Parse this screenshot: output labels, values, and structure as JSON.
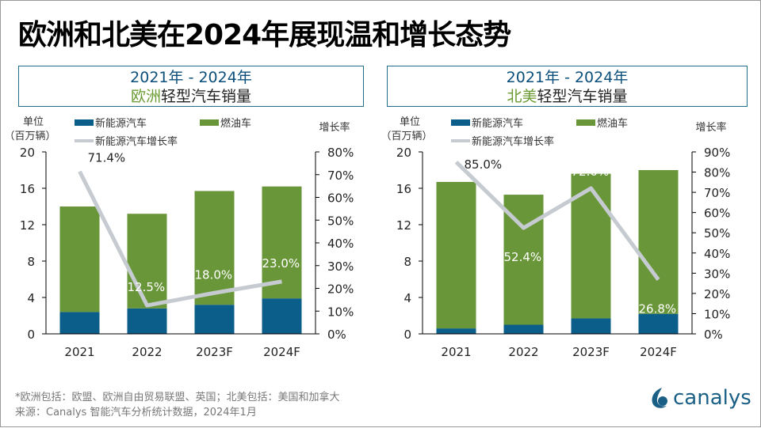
{
  "title": "欧洲和北美在2024年展现温和增长态势",
  "chart_data": [
    {
      "type": "bar+line",
      "header_line1": "2021年 - 2024年",
      "header_highlight": "欧洲",
      "header_rest": "轻型汽车销量",
      "ylabel": "单位",
      "ylabel2": "（百万辆）",
      "y2label": "增长率",
      "categories": [
        "2021",
        "2022",
        "2023F",
        "2024F"
      ],
      "ylim": [
        0,
        20
      ],
      "yticks": [
        "0",
        "4",
        "8",
        "12",
        "16",
        "20"
      ],
      "y2lim": [
        0,
        80
      ],
      "y2ticks": [
        "0%",
        "10%",
        "20%",
        "30%",
        "40%",
        "50%",
        "60%",
        "70%",
        "80%"
      ],
      "series": [
        {
          "name": "新能源汽车",
          "type": "bar-stacked",
          "color": "#0b5e8a",
          "values": [
            2.4,
            2.8,
            3.2,
            3.9
          ]
        },
        {
          "name": "燃油车",
          "type": "bar-stacked",
          "color": "#6a963a",
          "values": [
            11.6,
            10.4,
            12.5,
            12.3
          ]
        },
        {
          "name": "新能源汽车增长率",
          "type": "line",
          "axis": "right",
          "color": "#c5cbd0",
          "values": [
            71.4,
            12.5,
            18.0,
            23.0
          ],
          "labels": [
            "71.4%",
            "12.5%",
            "18.0%",
            "23.0%"
          ]
        }
      ]
    },
    {
      "type": "bar+line",
      "header_line1": "2021年 - 2024年",
      "header_highlight": "北美",
      "header_rest": "轻型汽车销量",
      "ylabel": "单位",
      "ylabel2": "（百万辆）",
      "y2label": "增长率",
      "categories": [
        "2021",
        "2022",
        "2023F",
        "2024F"
      ],
      "ylim": [
        0,
        20
      ],
      "yticks": [
        "0",
        "4",
        "8",
        "12",
        "16",
        "20"
      ],
      "y2lim": [
        0,
        90
      ],
      "y2ticks": [
        "0%",
        "10%",
        "20%",
        "30%",
        "40%",
        "50%",
        "60%",
        "70%",
        "80%",
        "90%"
      ],
      "series": [
        {
          "name": "新能源汽车",
          "type": "bar-stacked",
          "color": "#0b5e8a",
          "values": [
            0.6,
            1.0,
            1.7,
            2.2
          ]
        },
        {
          "name": "燃油车",
          "type": "bar-stacked",
          "color": "#6a963a",
          "values": [
            16.1,
            14.3,
            15.9,
            15.8
          ]
        },
        {
          "name": "新能源汽车增长率",
          "type": "line",
          "axis": "right",
          "color": "#c5cbd0",
          "values": [
            85.0,
            52.4,
            72.0,
            26.8
          ],
          "labels": [
            "85.0%",
            "52.4%",
            "72.0%",
            "26.8%"
          ]
        }
      ]
    }
  ],
  "footer": {
    "note": "*欧洲包括：欧盟、欧洲自由贸易联盟、英国；北美包括：美国和加拿大",
    "source": "来源：Canalys 智能汽车分析统计数据，2024年1月"
  },
  "logo": {
    "text": "canalys",
    "color": "#1a5f85"
  }
}
